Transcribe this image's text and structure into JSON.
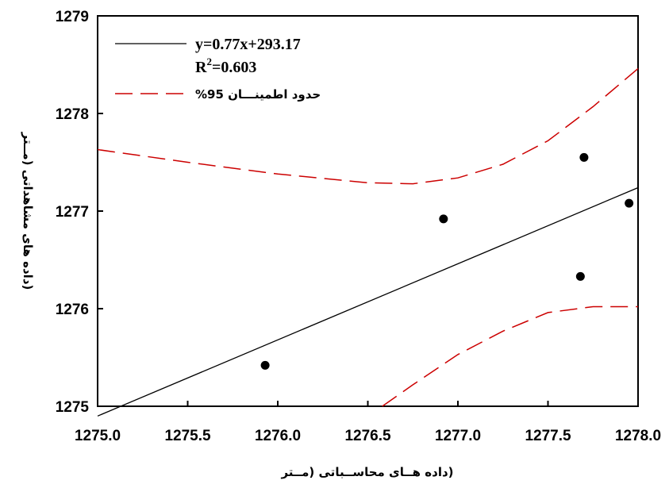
{
  "chart_data": {
    "type": "scatter",
    "xlabel": "(داده هــای محاســباتی (مــتر",
    "ylabel": "(داده های مشاهداتی (مــتر",
    "xlim": [
      1275.0,
      1278.0
    ],
    "ylim": [
      1275,
      1279
    ],
    "xticks": [
      "1275.0",
      "1275.5",
      "1276.0",
      "1276.5",
      "1277.0",
      "1277.5",
      "1278.0"
    ],
    "yticks": [
      "1275",
      "1276",
      "1277",
      "1278",
      "1279"
    ],
    "legend_placement": "top-left",
    "series": [
      {
        "kind": "points",
        "x": [
          1275.93,
          1276.92,
          1277.68,
          1277.7,
          1277.95
        ],
        "y": [
          1275.42,
          1276.92,
          1276.33,
          1277.55,
          1277.08
        ]
      },
      {
        "kind": "fit-line",
        "name": "y=0.77x+293.17",
        "slope": 0.77,
        "intercept": 293.17,
        "x": [
          1275.0,
          1278.0
        ],
        "y": [
          1274.9,
          1277.24
        ],
        "color": "#000000"
      },
      {
        "kind": "confidence-upper",
        "name": "حدود اطمینـــان 95%",
        "x": [
          1275.0,
          1275.5,
          1276.0,
          1276.5,
          1276.75,
          1277.0,
          1277.25,
          1277.5,
          1277.75,
          1278.0
        ],
        "y": [
          1277.63,
          1277.5,
          1277.38,
          1277.29,
          1277.28,
          1277.34,
          1277.48,
          1277.72,
          1278.07,
          1278.46
        ],
        "color": "#cc0000"
      },
      {
        "kind": "confidence-lower",
        "x": [
          1276.58,
          1276.75,
          1277.0,
          1277.25,
          1277.5,
          1277.75,
          1278.0
        ],
        "y": [
          1275.0,
          1275.22,
          1275.53,
          1275.77,
          1275.96,
          1276.02,
          1276.02
        ],
        "color": "#cc0000"
      }
    ],
    "legend": {
      "fit_label": "y=0.77x+293.17",
      "r2_prefix": "R",
      "r2_sup": "2",
      "r2_value": "=0.603",
      "ci_label": "حدود اطمینـــان 95%"
    }
  }
}
